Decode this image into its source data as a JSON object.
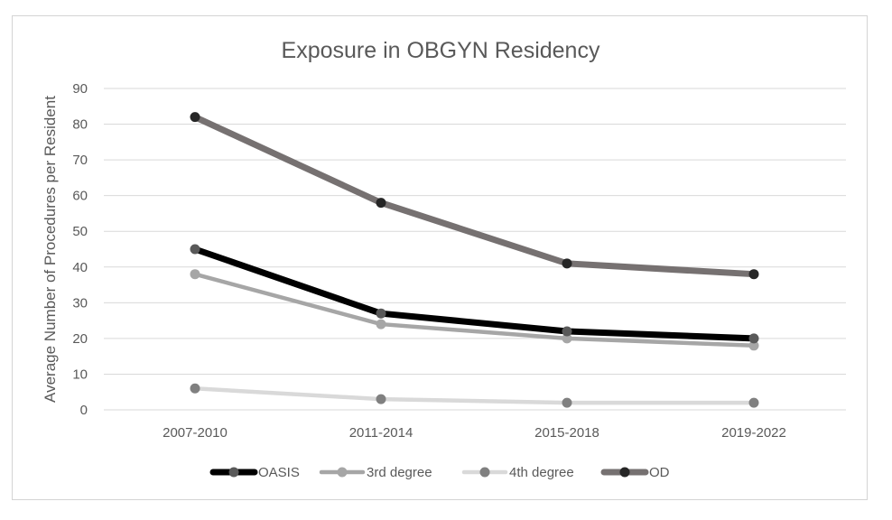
{
  "chart_data": {
    "type": "line",
    "title": "Exposure in OBGYN Residency",
    "xlabel": "",
    "ylabel": "Average Number of Procedures per Resident",
    "categories": [
      "2007-2010",
      "2011-2014",
      "2015-2018",
      "2019-2022"
    ],
    "ylim": [
      0,
      90
    ],
    "yticks": [
      0,
      10,
      20,
      30,
      40,
      50,
      60,
      70,
      80,
      90
    ],
    "grid": true,
    "legend_position": "bottom",
    "series": [
      {
        "name": "OASIS",
        "values": [
          45,
          27,
          22,
          20
        ],
        "line_color": "#000000",
        "marker_color": "#595959"
      },
      {
        "name": "3rd degree",
        "values": [
          38,
          24,
          20,
          18
        ],
        "line_color": "#a6a6a6",
        "marker_color": "#a6a6a6"
      },
      {
        "name": "4th degree",
        "values": [
          6,
          3,
          2,
          2
        ],
        "line_color": "#d9d9d9",
        "marker_color": "#808080"
      },
      {
        "name": "OD",
        "values": [
          82,
          58,
          41,
          38
        ],
        "line_color": "#767171",
        "marker_color": "#262626"
      }
    ]
  }
}
